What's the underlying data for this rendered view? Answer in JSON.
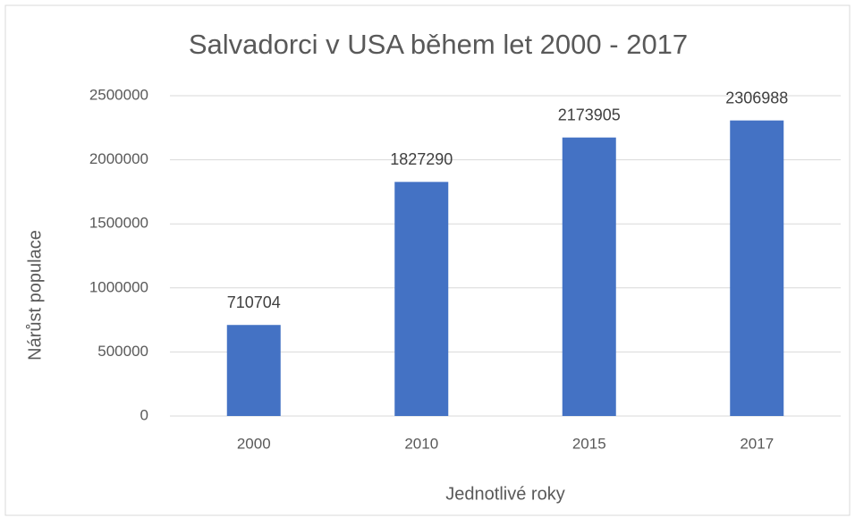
{
  "chart_data": {
    "type": "bar",
    "title": "Salvadorci v USA během let 2000 - 2017",
    "x_label": "Jednotlivé roky",
    "y_label": "Nárůst populace",
    "categories": [
      "2000",
      "2010",
      "2015",
      "2017"
    ],
    "values": [
      710704,
      1827290,
      2173905,
      2306988
    ],
    "color": "#4472c4",
    "ylim": [
      0,
      2500000
    ],
    "yticks": [
      0,
      500000,
      1000000,
      1500000,
      2000000,
      2500000
    ],
    "grid": true
  }
}
